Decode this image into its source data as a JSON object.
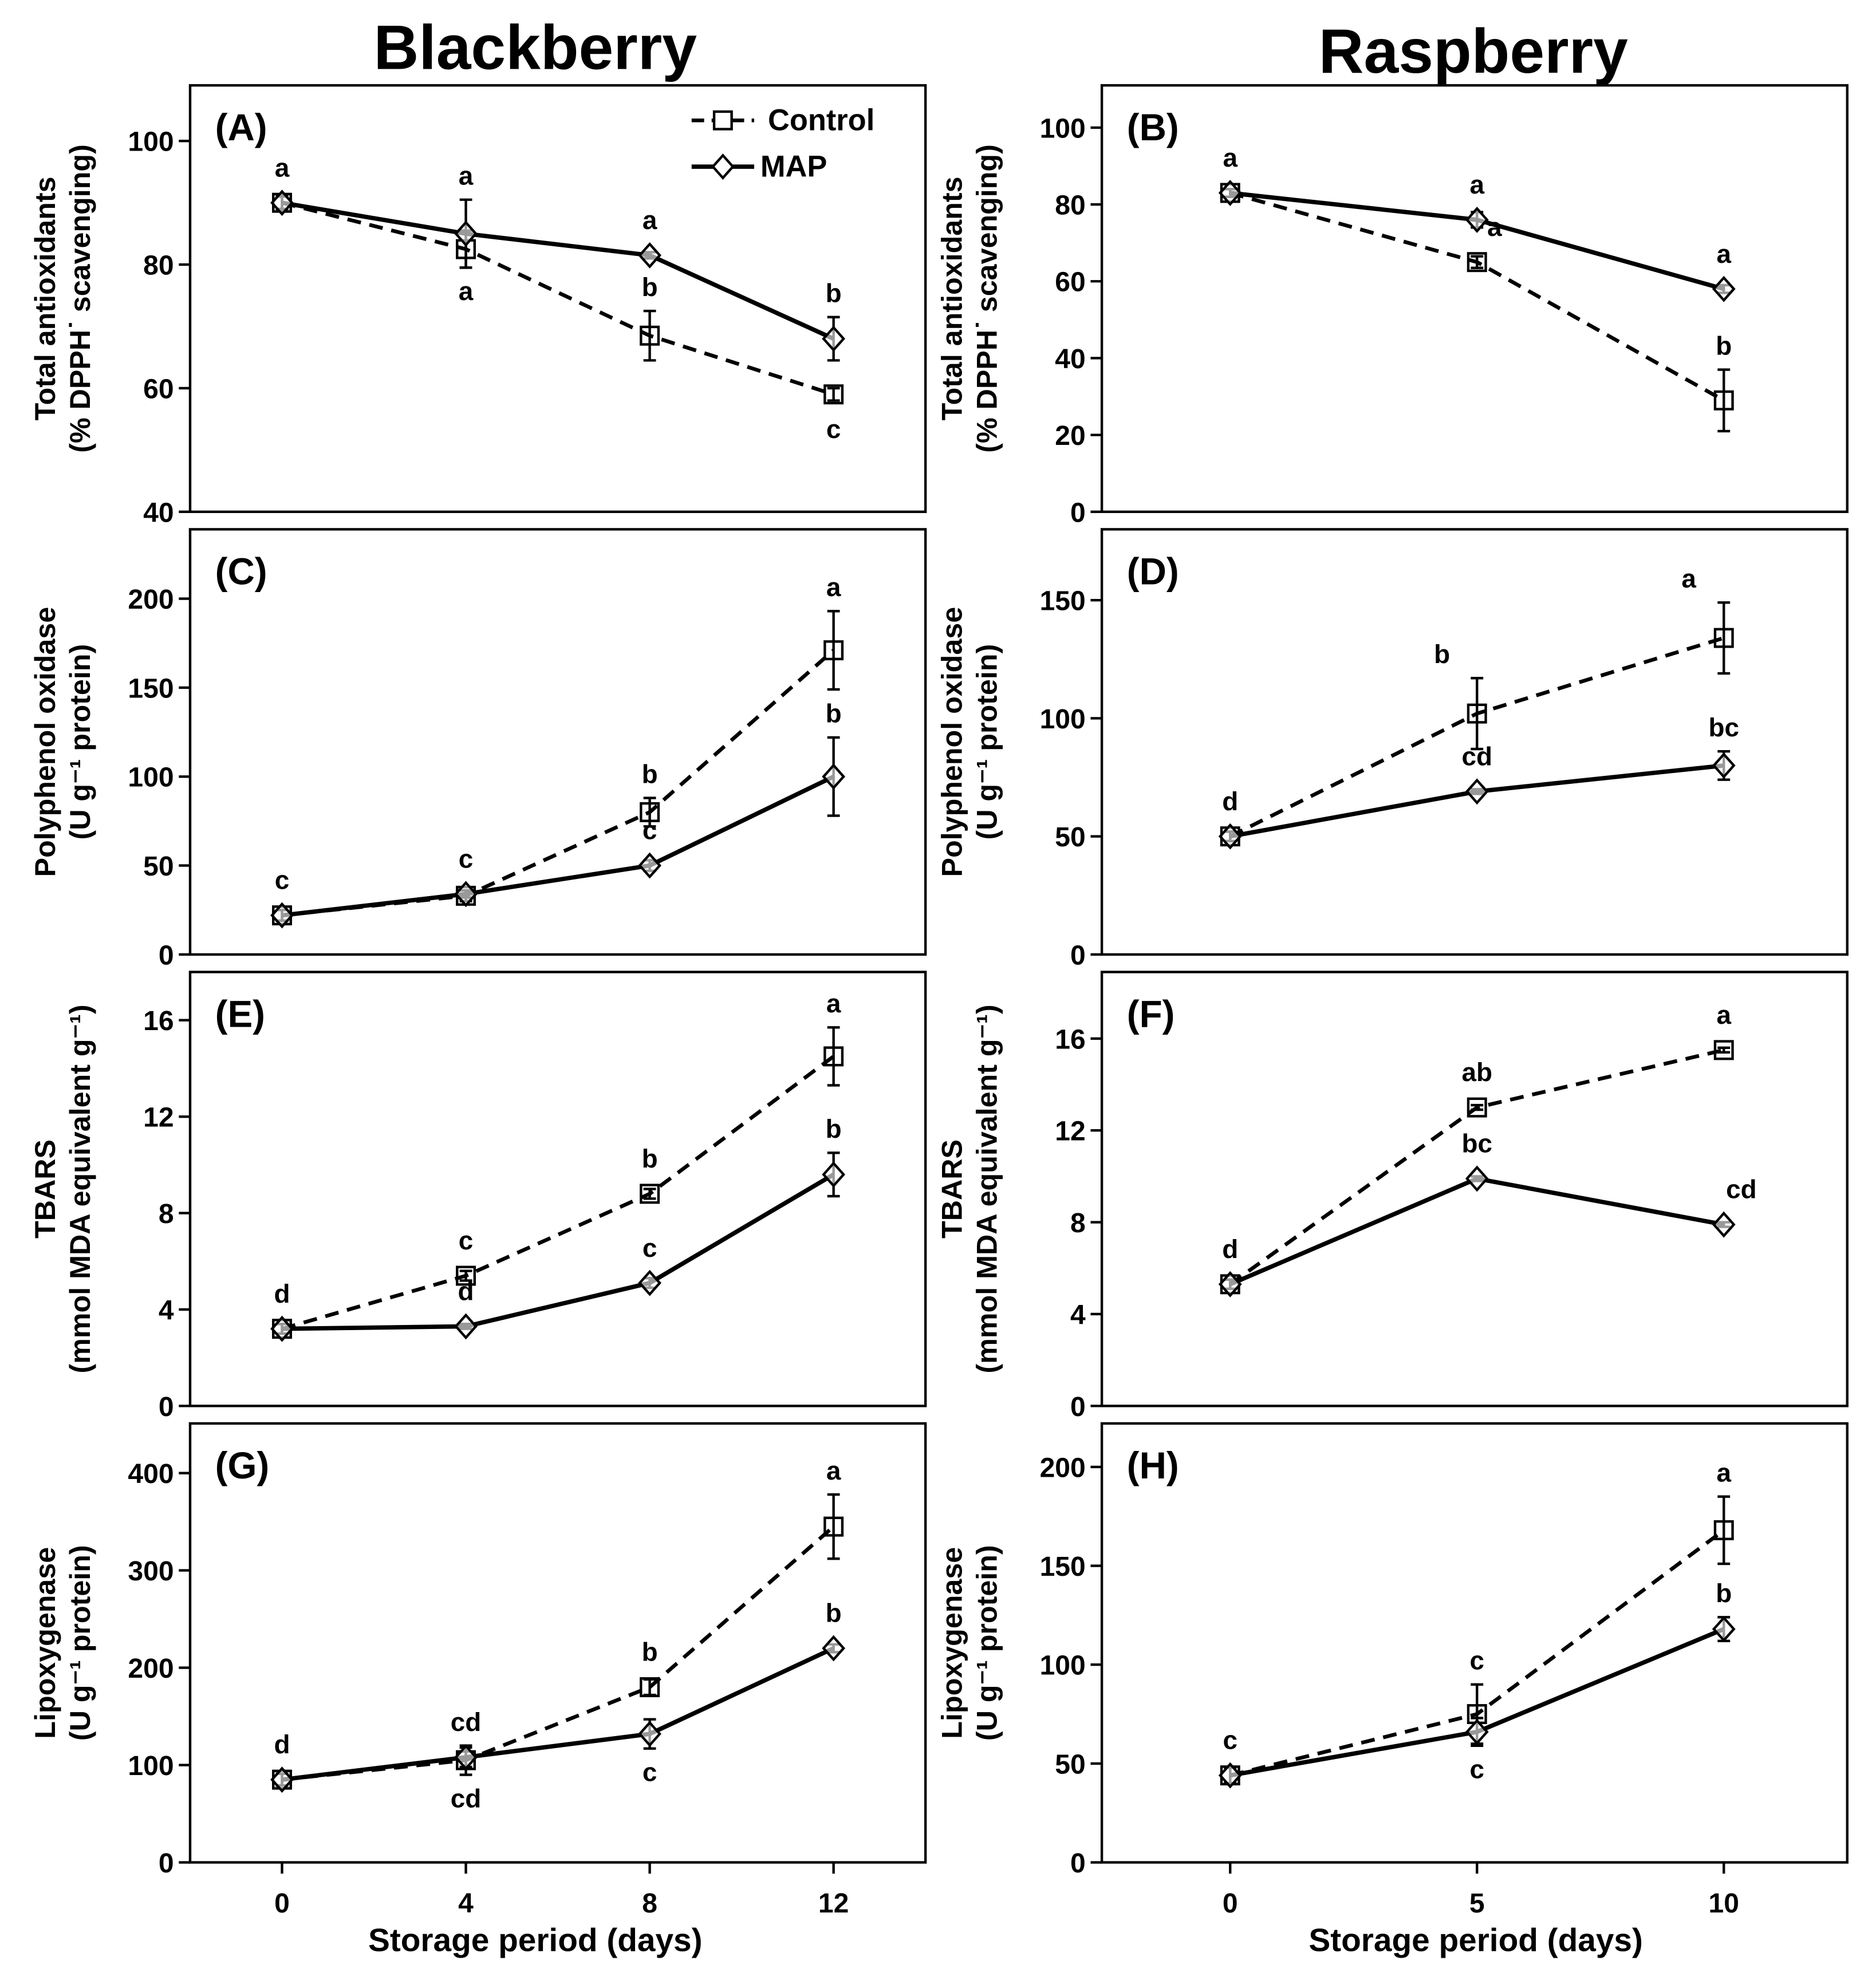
{
  "figure": {
    "column_titles": [
      "Blackberry",
      "Raspberry"
    ],
    "xlabel": "Storage period (days)",
    "legend": [
      "Control",
      "MAP"
    ],
    "colors": {
      "line": "#000000",
      "marker_fill": "#ffffff",
      "background": "#ffffff"
    }
  },
  "chart_data": [
    {
      "type": "line",
      "panel": "(A)",
      "column": 0,
      "row": 0,
      "x": [
        0,
        4,
        8,
        12
      ],
      "xlim": [
        -2,
        14
      ],
      "ylim": [
        40,
        109
      ],
      "yticks": [
        40,
        60,
        80,
        100
      ],
      "ylabel": [
        "Total antioxidants",
        "(% DPPH˙ scavenging)"
      ],
      "series": [
        {
          "name": "Control",
          "values": [
            90,
            82.5,
            68.5,
            59
          ],
          "errors": [
            1,
            3,
            4,
            1
          ],
          "labels": [
            null,
            {
              "t": "a",
              "p": "below"
            },
            {
              "t": "b",
              "p": "above"
            },
            {
              "t": "c",
              "p": "below"
            }
          ]
        },
        {
          "name": "MAP",
          "values": [
            90,
            85,
            81.5,
            68
          ],
          "errors": [
            1,
            5.5,
            0.5,
            3.5
          ],
          "labels": [
            {
              "t": "a",
              "p": "above"
            },
            {
              "t": "a",
              "p": "above"
            },
            {
              "t": "a",
              "p": "above"
            },
            {
              "t": "b",
              "p": "above"
            }
          ]
        }
      ]
    },
    {
      "type": "line",
      "panel": "(B)",
      "column": 1,
      "row": 0,
      "x": [
        0,
        5,
        10
      ],
      "xlim": [
        -2.6,
        12.5
      ],
      "ylim": [
        0,
        111
      ],
      "yticks": [
        0,
        20,
        40,
        60,
        80,
        100
      ],
      "ylabel": [
        "Total antioxidants",
        "(% DPPH˙ scavenging)"
      ],
      "series": [
        {
          "name": "Control",
          "values": [
            83,
            65,
            29
          ],
          "errors": [
            1,
            1.5,
            8
          ],
          "labels": [
            null,
            {
              "t": "a",
              "p": "above-right"
            },
            {
              "t": "b",
              "p": "above"
            }
          ]
        },
        {
          "name": "MAP",
          "values": [
            83,
            76,
            58
          ],
          "errors": [
            1,
            2,
            1
          ],
          "labels": [
            {
              "t": "a",
              "p": "above"
            },
            {
              "t": "a",
              "p": "above"
            },
            {
              "t": "a",
              "p": "above"
            }
          ]
        }
      ]
    },
    {
      "type": "line",
      "panel": "(C)",
      "column": 0,
      "row": 1,
      "x": [
        0,
        4,
        8,
        12
      ],
      "xlim": [
        -2,
        14
      ],
      "ylim": [
        0,
        239
      ],
      "yticks": [
        0,
        50,
        100,
        150,
        200
      ],
      "ylabel": [
        "Polyphenol oxidase",
        "(U g⁻¹ protein)"
      ],
      "series": [
        {
          "name": "Control",
          "values": [
            22,
            33,
            80,
            171
          ],
          "errors": [
            3,
            3,
            8,
            22
          ],
          "labels": [
            null,
            null,
            {
              "t": "b",
              "p": "above"
            },
            {
              "t": "a",
              "p": "above"
            }
          ]
        },
        {
          "name": "MAP",
          "values": [
            22,
            34,
            50,
            100
          ],
          "errors": [
            3,
            2,
            3,
            22
          ],
          "labels": [
            {
              "t": "c",
              "p": "above"
            },
            {
              "t": "c",
              "p": "above"
            },
            {
              "t": "c",
              "p": "above"
            },
            {
              "t": "b",
              "p": "above"
            }
          ]
        }
      ]
    },
    {
      "type": "line",
      "panel": "(D)",
      "column": 1,
      "row": 1,
      "x": [
        0,
        5,
        10
      ],
      "xlim": [
        -2.6,
        12.5
      ],
      "ylim": [
        0,
        180
      ],
      "yticks": [
        0,
        50,
        100,
        150
      ],
      "ylabel": [
        "Polyphenol oxidase",
        "(U g⁻¹ protein)"
      ],
      "series": [
        {
          "name": "Control",
          "values": [
            50,
            102,
            134
          ],
          "errors": [
            2,
            15,
            15
          ],
          "labels": [
            null,
            {
              "t": "b",
              "p": "above-left"
            },
            {
              "t": "a",
              "p": "above-left"
            }
          ]
        },
        {
          "name": "MAP",
          "values": [
            50,
            69,
            80
          ],
          "errors": [
            2,
            1,
            6
          ],
          "labels": [
            {
              "t": "d",
              "p": "above"
            },
            {
              "t": "cd",
              "p": "above"
            },
            {
              "t": "bc",
              "p": "above"
            }
          ]
        }
      ]
    },
    {
      "type": "line",
      "panel": "(E)",
      "column": 0,
      "row": 2,
      "x": [
        0,
        4,
        8,
        12
      ],
      "xlim": [
        -2,
        14
      ],
      "ylim": [
        0,
        18
      ],
      "yticks": [
        0,
        4,
        8,
        12,
        16
      ],
      "ylabel": [
        "TBARS",
        "(mmol MDA equivalent g⁻¹)"
      ],
      "series": [
        {
          "name": "Control",
          "values": [
            3.2,
            5.4,
            8.8,
            14.5
          ],
          "errors": [
            0.2,
            0.2,
            0.2,
            1.2
          ],
          "labels": [
            null,
            {
              "t": "c",
              "p": "above"
            },
            {
              "t": "b",
              "p": "above"
            },
            {
              "t": "a",
              "p": "above"
            }
          ]
        },
        {
          "name": "MAP",
          "values": [
            3.2,
            3.3,
            5.1,
            9.6
          ],
          "errors": [
            0.2,
            0.1,
            0.2,
            0.9
          ],
          "labels": [
            {
              "t": "d",
              "p": "above"
            },
            {
              "t": "d",
              "p": "above"
            },
            {
              "t": "c",
              "p": "above"
            },
            {
              "t": "b",
              "p": "above"
            }
          ]
        }
      ]
    },
    {
      "type": "line",
      "panel": "(F)",
      "column": 1,
      "row": 2,
      "x": [
        0,
        5,
        10
      ],
      "xlim": [
        -2.6,
        12.5
      ],
      "ylim": [
        0,
        18.9
      ],
      "yticks": [
        0,
        4,
        8,
        12,
        16
      ],
      "ylabel": [
        "TBARS",
        "(mmol MDA equivalent g⁻¹)"
      ],
      "series": [
        {
          "name": "Control",
          "values": [
            5.3,
            13,
            15.5
          ],
          "errors": [
            0.2,
            0.1,
            0.1
          ],
          "labels": [
            null,
            {
              "t": "ab",
              "p": "above"
            },
            {
              "t": "a",
              "p": "above"
            }
          ]
        },
        {
          "name": "MAP",
          "values": [
            5.3,
            9.9,
            7.9
          ],
          "errors": [
            0.2,
            0.1,
            0.1
          ],
          "labels": [
            {
              "t": "d",
              "p": "above"
            },
            {
              "t": "bc",
              "p": "above"
            },
            {
              "t": "cd",
              "p": "above-right"
            }
          ]
        }
      ]
    },
    {
      "type": "line",
      "panel": "(G)",
      "column": 0,
      "row": 3,
      "x": [
        0,
        4,
        8,
        12
      ],
      "xlim": [
        -2,
        14
      ],
      "ylim": [
        0,
        451
      ],
      "yticks": [
        0,
        100,
        200,
        300,
        400
      ],
      "ylabel": [
        "Lipoxygenase",
        "(U g⁻¹ protein)"
      ],
      "series": [
        {
          "name": "Control",
          "values": [
            85,
            105,
            180,
            345
          ],
          "errors": [
            6,
            15,
            8,
            33
          ],
          "labels": [
            null,
            {
              "t": "cd",
              "p": "below"
            },
            {
              "t": "b",
              "p": "above"
            },
            {
              "t": "a",
              "p": "above"
            }
          ]
        },
        {
          "name": "MAP",
          "values": [
            85,
            108,
            132,
            220
          ],
          "errors": [
            6,
            10,
            15,
            4
          ],
          "labels": [
            {
              "t": "d",
              "p": "above"
            },
            {
              "t": "cd",
              "p": "above"
            },
            {
              "t": "c",
              "p": "below"
            },
            {
              "t": "b",
              "p": "above"
            }
          ]
        }
      ]
    },
    {
      "type": "line",
      "panel": "(H)",
      "column": 1,
      "row": 3,
      "x": [
        0,
        5,
        10
      ],
      "xlim": [
        -2.6,
        12.5
      ],
      "ylim": [
        0,
        222
      ],
      "yticks": [
        0,
        50,
        100,
        150,
        200
      ],
      "ylabel": [
        "Lipoxygenase",
        "(U g⁻¹ protein)"
      ],
      "series": [
        {
          "name": "Control",
          "values": [
            44,
            75,
            168
          ],
          "errors": [
            4,
            15,
            17
          ],
          "labels": [
            null,
            {
              "t": "c",
              "p": "above"
            },
            {
              "t": "a",
              "p": "above"
            }
          ]
        },
        {
          "name": "MAP",
          "values": [
            44,
            66,
            118
          ],
          "errors": [
            4,
            7,
            6
          ],
          "labels": [
            {
              "t": "c",
              "p": "above"
            },
            {
              "t": "c",
              "p": "below"
            },
            {
              "t": "b",
              "p": "above"
            }
          ]
        }
      ]
    }
  ]
}
